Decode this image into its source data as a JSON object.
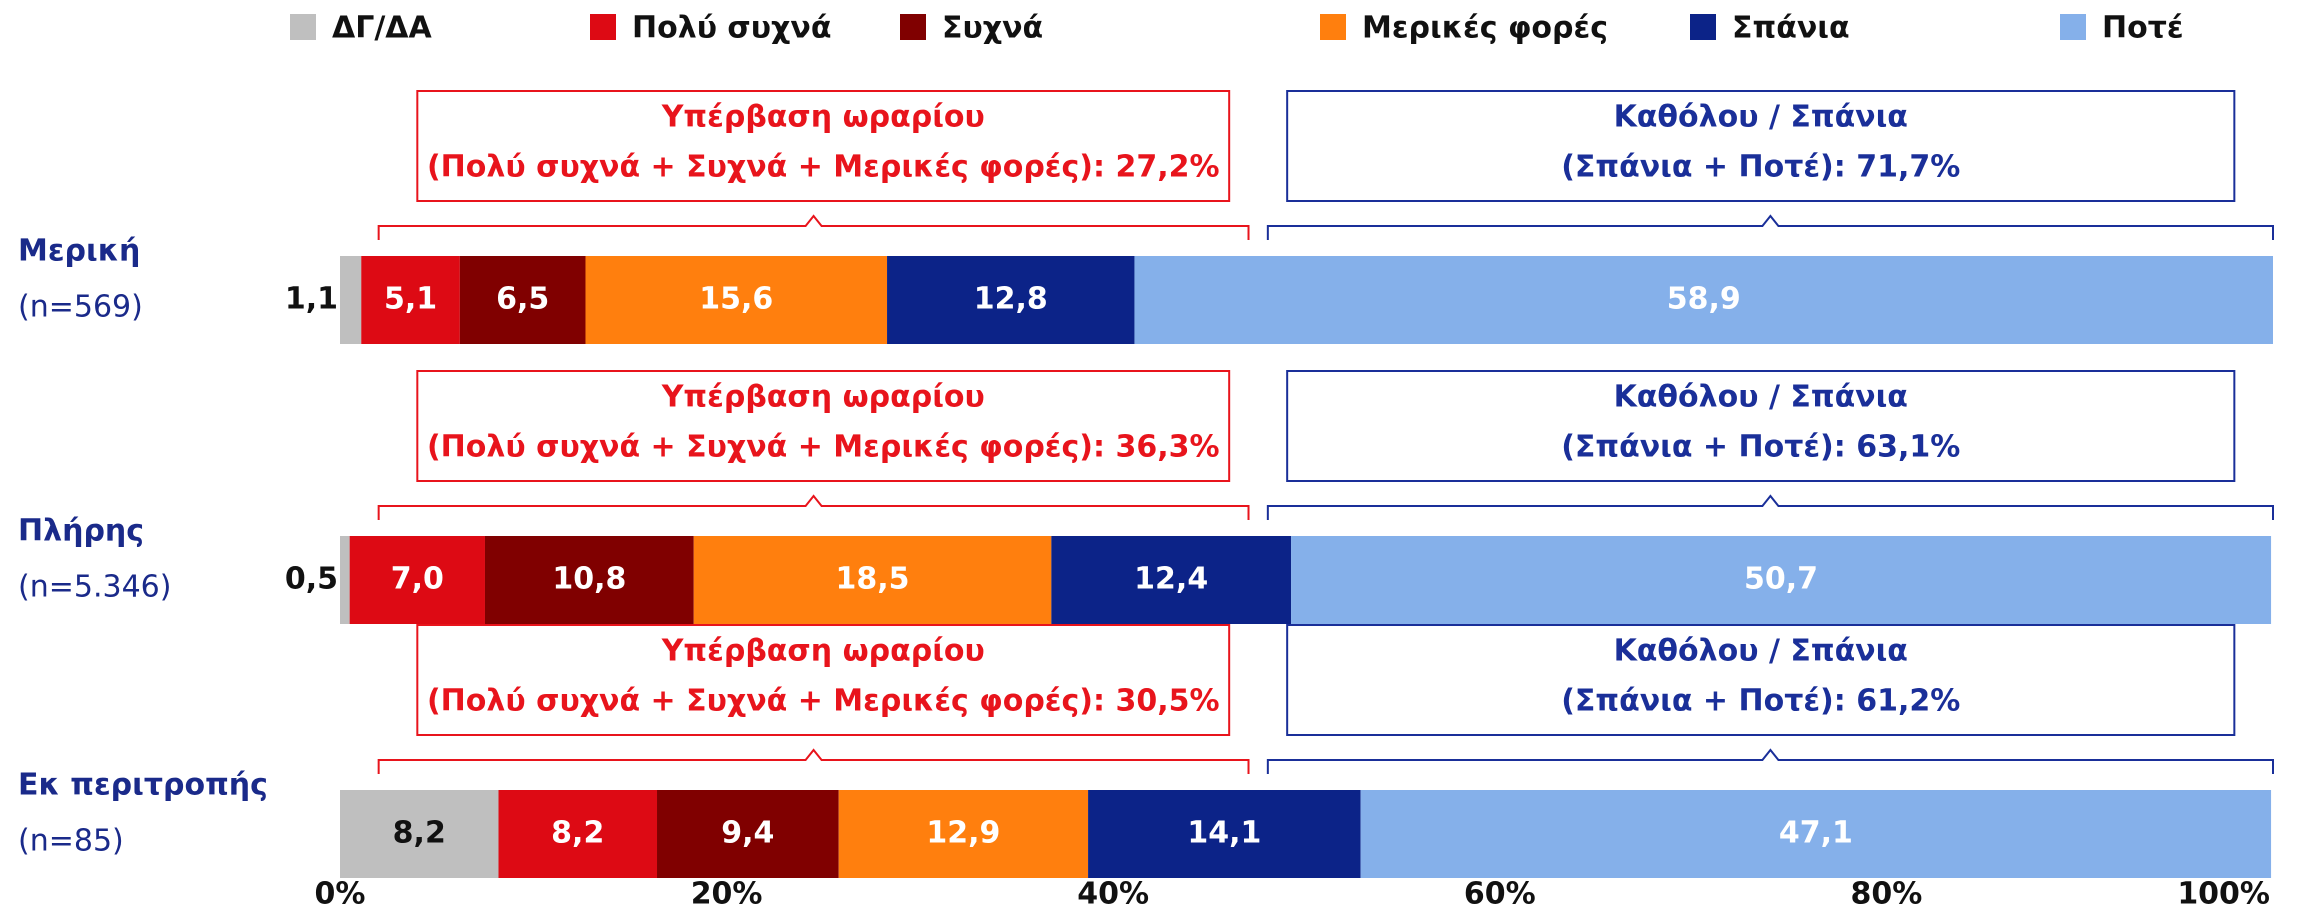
{
  "chart_data": {
    "type": "stacked-bar-horizontal",
    "categories": [
      "Μερική",
      "Πλήρης",
      "Εκ περιτροπής"
    ],
    "category_notes": [
      "(n=569)",
      "(n=5.346)",
      "(n=85)"
    ],
    "series": [
      {
        "name": "ΔΓ/ΔΑ",
        "color": "#bfbfbf",
        "label_color": "#111111",
        "values": [
          1.1,
          0.5,
          8.2
        ],
        "value_labels": [
          "1,1",
          "0,5",
          "8,2"
        ]
      },
      {
        "name": "Πολύ συχνά",
        "color": "#dd0a14",
        "label_color": "#ffffff",
        "values": [
          5.1,
          7.0,
          8.2
        ],
        "value_labels": [
          "5,1",
          "7,0",
          "8,2"
        ]
      },
      {
        "name": "Συχνά",
        "color": "#800000",
        "label_color": "#ffffff",
        "values": [
          6.5,
          10.8,
          9.4
        ],
        "value_labels": [
          "6,5",
          "10,8",
          "9,4"
        ]
      },
      {
        "name": "Μερικές φορές",
        "color": "#ff7f0e",
        "label_color": "#ffffff",
        "values": [
          15.6,
          18.5,
          12.9
        ],
        "value_labels": [
          "15,6",
          "18,5",
          "12,9"
        ]
      },
      {
        "name": "Σπάνια",
        "color": "#0c2388",
        "label_color": "#ffffff",
        "values": [
          12.8,
          12.4,
          14.1
        ],
        "value_labels": [
          "12,8",
          "12,4",
          "14,1"
        ]
      },
      {
        "name": "Ποτέ",
        "color": "#85b0ea",
        "label_color": "#ffffff",
        "values": [
          58.9,
          50.7,
          47.1
        ],
        "value_labels": [
          "58,9",
          "50,7",
          "47,1"
        ]
      }
    ],
    "annotations": [
      [
        {
          "color": "#e8141c",
          "lines": [
            "Υπέρβαση ωραρίου",
            "(Πολύ συχνά + Συχνά + Μερικές φορές): 27,2%"
          ]
        },
        {
          "color": "#1a2f99",
          "lines": [
            "Καθόλου / Σπάνια",
            "(Σπάνια + Ποτέ): 71,7%"
          ]
        }
      ],
      [
        {
          "color": "#e8141c",
          "lines": [
            "Υπέρβαση ωραρίου",
            "(Πολύ συχνά + Συχνά + Μερικές φορές): 36,3%"
          ]
        },
        {
          "color": "#1a2f99",
          "lines": [
            "Καθόλου / Σπάνια",
            "(Σπάνια + Ποτέ): 63,1%"
          ]
        }
      ],
      [
        {
          "color": "#e8141c",
          "lines": [
            "Υπέρβαση ωραρίου",
            "(Πολύ συχνά + Συχνά + Μερικές φορές): 30,5%"
          ]
        },
        {
          "color": "#1a2f99",
          "lines": [
            "Καθόλου / Σπάνια",
            "(Σπάνια + Ποτέ): 61,2%"
          ]
        }
      ]
    ],
    "xlim": [
      0,
      100
    ],
    "xticks": [
      {
        "value": 0,
        "label": "0%"
      },
      {
        "value": 20,
        "label": "20%"
      },
      {
        "value": 40,
        "label": "40%"
      },
      {
        "value": 60,
        "label": "60%"
      },
      {
        "value": 80,
        "label": "80%"
      },
      {
        "value": 100,
        "label": "100%"
      }
    ],
    "legend": "top"
  }
}
